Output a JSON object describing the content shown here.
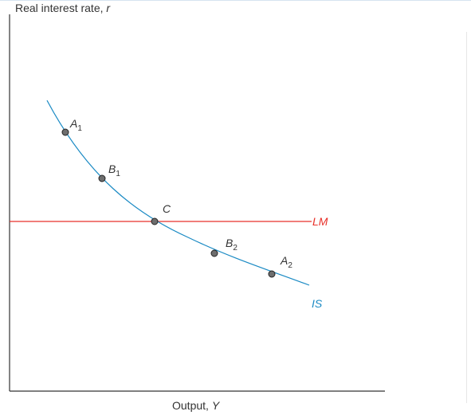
{
  "axes": {
    "y_label_main": "Real interest rate,",
    "y_label_var": "r",
    "x_label_main": "Output,",
    "x_label_var": "Y"
  },
  "curves": {
    "is_label": "IS",
    "lm_label": "LM"
  },
  "points": [
    {
      "id": "A1",
      "letter": "A",
      "sub": "1"
    },
    {
      "id": "B1",
      "letter": "B",
      "sub": "1"
    },
    {
      "id": "C",
      "letter": "C",
      "sub": ""
    },
    {
      "id": "B2",
      "letter": "B",
      "sub": "2"
    },
    {
      "id": "A2",
      "letter": "A",
      "sub": "2"
    }
  ],
  "colors": {
    "is_curve": "#1a8ac4",
    "lm_curve": "#e8312a",
    "axis": "#333333",
    "point_fill": "#6e6e6e",
    "point_stroke": "#222222",
    "text": "#333333"
  }
}
